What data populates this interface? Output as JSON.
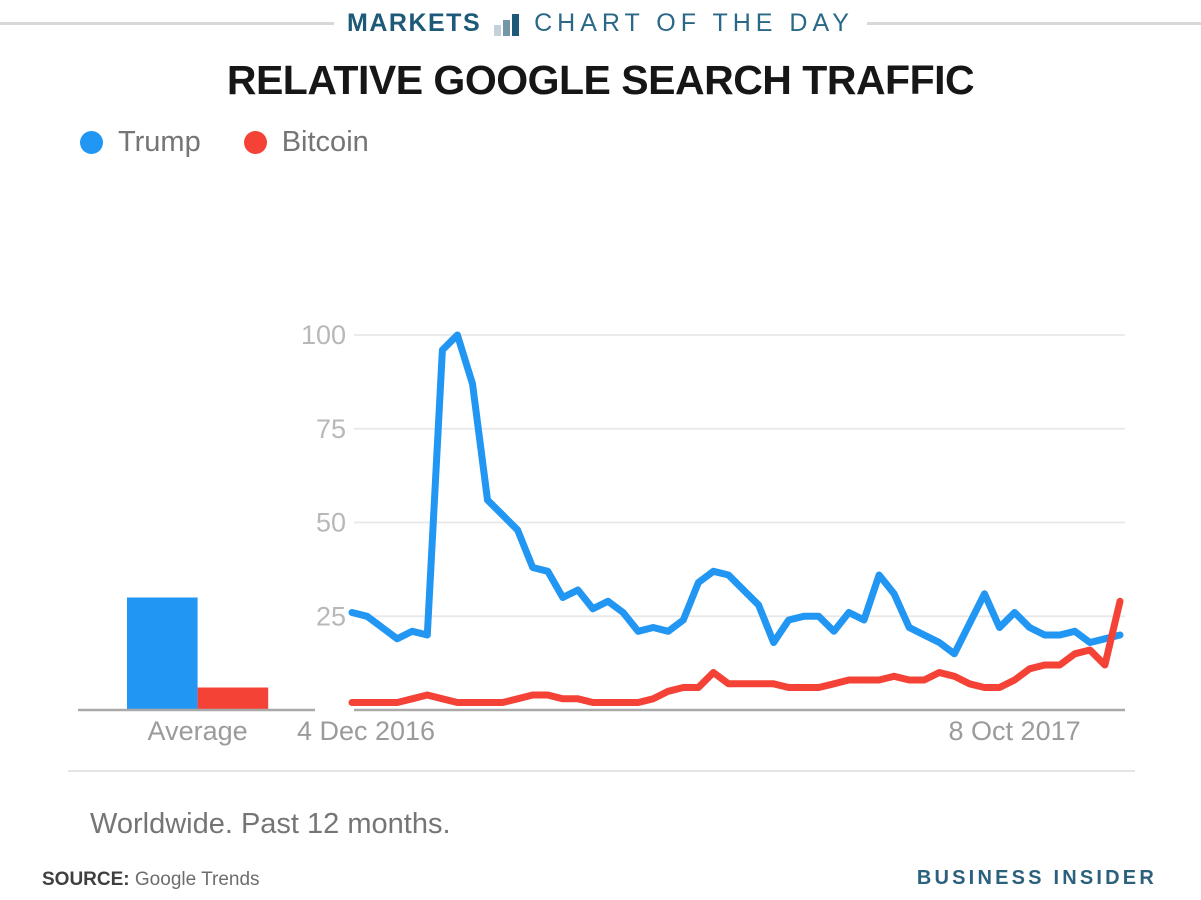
{
  "header": {
    "kicker_left": "MARKETS",
    "kicker_right": "CHART OF THE DAY",
    "accent_color": "#1d5a77"
  },
  "title": "RELATIVE GOOGLE SEARCH TRAFFIC",
  "chart_data": {
    "type": "line",
    "title": "RELATIVE GOOGLE SEARCH TRAFFIC",
    "x_unit": "weekly",
    "grid": true,
    "legend_position": "top-left",
    "ylim": [
      0,
      100
    ],
    "y_ticks": [
      25,
      50,
      75,
      100
    ],
    "x_ticks": [
      {
        "label": "4 Dec 2016",
        "week_index": 0
      },
      {
        "label": "8 Oct 2017",
        "week_index": 44
      }
    ],
    "series": [
      {
        "name": "Trump",
        "color": "#2196f3",
        "values": [
          26,
          25,
          22,
          19,
          21,
          20,
          96,
          100,
          87,
          56,
          52,
          48,
          38,
          37,
          30,
          32,
          27,
          29,
          26,
          21,
          22,
          21,
          24,
          34,
          37,
          36,
          32,
          28,
          18,
          24,
          25,
          25,
          21,
          26,
          24,
          36,
          31,
          22,
          20,
          18,
          15,
          23,
          31,
          22,
          26,
          22,
          20,
          20,
          21,
          18,
          19,
          20
        ]
      },
      {
        "name": "Bitcoin",
        "color": "#f44336",
        "values": [
          2,
          2,
          2,
          2,
          3,
          4,
          3,
          2,
          2,
          2,
          2,
          3,
          4,
          4,
          3,
          3,
          2,
          2,
          2,
          2,
          3,
          5,
          6,
          6,
          10,
          7,
          7,
          7,
          7,
          6,
          6,
          6,
          7,
          8,
          8,
          8,
          9,
          8,
          8,
          10,
          9,
          7,
          6,
          6,
          8,
          11,
          12,
          12,
          15,
          16,
          12,
          29
        ]
      }
    ],
    "average_bars": {
      "label": "Average",
      "bars": [
        {
          "name": "Trump",
          "value": 30,
          "color": "#2196f3"
        },
        {
          "name": "Bitcoin",
          "value": 6,
          "color": "#f44336"
        }
      ]
    }
  },
  "footnote": "Worldwide. Past 12 months.",
  "source": {
    "label": "SOURCE:",
    "value": "Google Trends"
  },
  "brand": "BUSINESS INSIDER",
  "colors": {
    "trump_blue": "#2196f3",
    "bitcoin_red": "#f44336",
    "grid_gray": "#e8e8e8",
    "axis_gray": "#a9a9a9",
    "text_gray": "#757575"
  }
}
